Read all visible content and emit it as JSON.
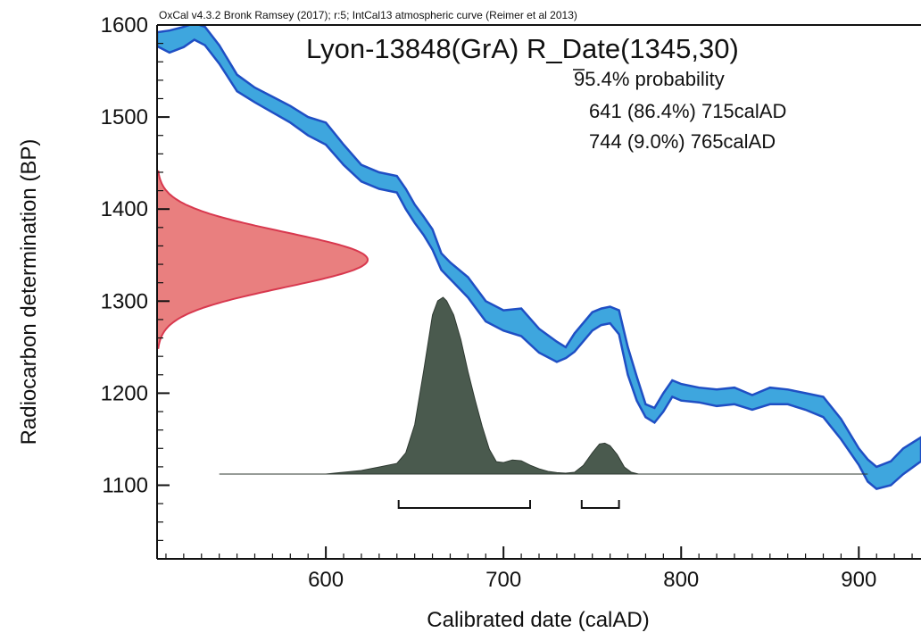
{
  "chart_data": {
    "type": "area",
    "header": "OxCal v4.3.2 Bronk Ramsey (2017); r:5; IntCal13 atmospheric curve (Reimer et al 2013)",
    "title": "Lyon-13848(GrA) R_Date(1345,30)",
    "probability_label": "95.4% probability",
    "ranges_text": [
      "641 (86.4%) 715calAD",
      "744 (9.0%) 765calAD"
    ],
    "ranges": [
      [
        641,
        715
      ],
      [
        744,
        765
      ]
    ],
    "xlabel": "Calibrated date (calAD)",
    "ylabel": "Radiocarbon determination (BP)",
    "xlim": [
      505,
      935
    ],
    "ylim": [
      1020,
      1600
    ],
    "xticks": [
      600,
      700,
      800,
      900
    ],
    "yticks": [
      1100,
      1200,
      1300,
      1400,
      1500,
      1600
    ],
    "radiocarbon": {
      "mean": 1345,
      "sigma": 30
    },
    "calibration_curve": [
      [
        505,
        1592,
        1577
      ],
      [
        512,
        1594,
        1570
      ],
      [
        520,
        1598,
        1576
      ],
      [
        526,
        1602,
        1584
      ],
      [
        532,
        1598,
        1578
      ],
      [
        540,
        1578,
        1558
      ],
      [
        550,
        1546,
        1528
      ],
      [
        560,
        1532,
        1516
      ],
      [
        570,
        1522,
        1505
      ],
      [
        580,
        1512,
        1494
      ],
      [
        590,
        1500,
        1480
      ],
      [
        600,
        1494,
        1470
      ],
      [
        610,
        1470,
        1448
      ],
      [
        620,
        1448,
        1430
      ],
      [
        630,
        1440,
        1422
      ],
      [
        640,
        1436,
        1418
      ],
      [
        645,
        1422,
        1400
      ],
      [
        650,
        1405,
        1385
      ],
      [
        655,
        1392,
        1372
      ],
      [
        660,
        1378,
        1356
      ],
      [
        665,
        1352,
        1334
      ],
      [
        670,
        1342,
        1324
      ],
      [
        680,
        1326,
        1304
      ],
      [
        690,
        1300,
        1278
      ],
      [
        700,
        1290,
        1268
      ],
      [
        710,
        1292,
        1262
      ],
      [
        720,
        1270,
        1244
      ],
      [
        730,
        1256,
        1234
      ],
      [
        735,
        1250,
        1238
      ],
      [
        740,
        1265,
        1245
      ],
      [
        750,
        1288,
        1268
      ],
      [
        755,
        1292,
        1274
      ],
      [
        760,
        1294,
        1276
      ],
      [
        765,
        1290,
        1264
      ],
      [
        770,
        1250,
        1220
      ],
      [
        775,
        1218,
        1192
      ],
      [
        780,
        1188,
        1174
      ],
      [
        785,
        1184,
        1168
      ],
      [
        790,
        1200,
        1180
      ],
      [
        795,
        1214,
        1196
      ],
      [
        800,
        1210,
        1192
      ],
      [
        810,
        1206,
        1190
      ],
      [
        820,
        1204,
        1186
      ],
      [
        830,
        1206,
        1188
      ],
      [
        840,
        1198,
        1182
      ],
      [
        850,
        1206,
        1188
      ],
      [
        860,
        1204,
        1188
      ],
      [
        870,
        1200,
        1182
      ],
      [
        880,
        1196,
        1174
      ],
      [
        890,
        1172,
        1150
      ],
      [
        900,
        1140,
        1122
      ],
      [
        905,
        1128,
        1104
      ],
      [
        910,
        1120,
        1096
      ],
      [
        918,
        1126,
        1100
      ],
      [
        925,
        1140,
        1112
      ],
      [
        935,
        1152,
        1126
      ]
    ],
    "calibrated_distribution": [
      [
        540,
        0.0
      ],
      [
        580,
        0.0
      ],
      [
        600,
        0.0
      ],
      [
        610,
        0.01
      ],
      [
        620,
        0.02
      ],
      [
        630,
        0.04
      ],
      [
        640,
        0.06
      ],
      [
        645,
        0.12
      ],
      [
        650,
        0.28
      ],
      [
        655,
        0.58
      ],
      [
        660,
        0.9
      ],
      [
        663,
        0.98
      ],
      [
        666,
        1.0
      ],
      [
        668,
        0.98
      ],
      [
        672,
        0.9
      ],
      [
        676,
        0.76
      ],
      [
        680,
        0.58
      ],
      [
        684,
        0.42
      ],
      [
        688,
        0.27
      ],
      [
        692,
        0.14
      ],
      [
        696,
        0.07
      ],
      [
        700,
        0.065
      ],
      [
        705,
        0.08
      ],
      [
        710,
        0.075
      ],
      [
        715,
        0.05
      ],
      [
        720,
        0.03
      ],
      [
        725,
        0.015
      ],
      [
        730,
        0.008
      ],
      [
        735,
        0.005
      ],
      [
        740,
        0.01
      ],
      [
        745,
        0.05
      ],
      [
        750,
        0.12
      ],
      [
        754,
        0.17
      ],
      [
        757,
        0.175
      ],
      [
        760,
        0.16
      ],
      [
        764,
        0.11
      ],
      [
        768,
        0.04
      ],
      [
        772,
        0.01
      ],
      [
        776,
        0.0
      ],
      [
        820,
        0.0
      ],
      [
        900,
        0.0
      ],
      [
        905,
        0.0
      ]
    ],
    "grid": false,
    "colors": {
      "curve_fill": "#3ea6de",
      "curve_edge": "#1f4fc4",
      "radiocarbon_fill": "#e97f7f",
      "radiocarbon_edge": "#d8384e",
      "calibrated_fill": "#4a5a4e",
      "axis": "#111111"
    }
  }
}
